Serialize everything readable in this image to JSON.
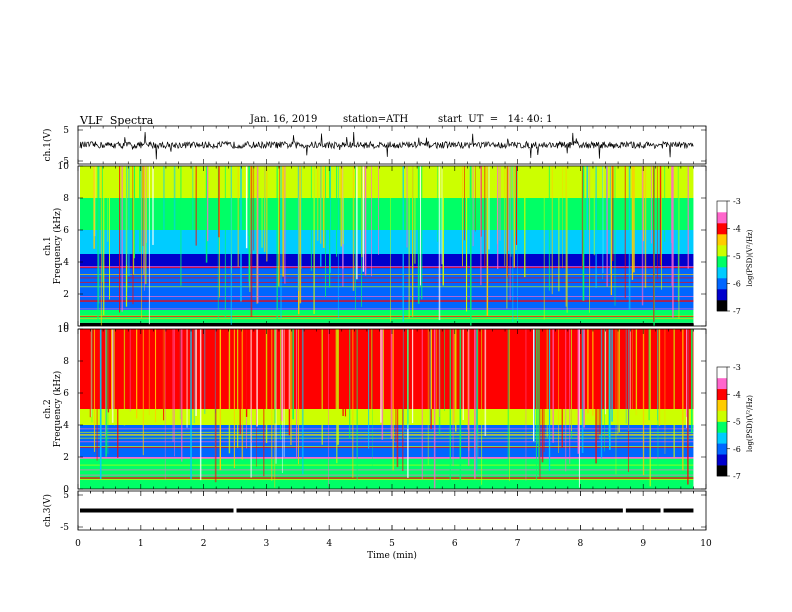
{
  "header": {
    "title": "VLF  Spectra",
    "date": "Jan. 16, 2019",
    "station": "station=ATH",
    "start": "start  UT  =   14: 40: 1"
  },
  "colorbar": {
    "label": "log(PSD)(V²/Hz)",
    "ticks": [
      "-3",
      "-4",
      "-5",
      "-6",
      "-7"
    ],
    "range": [
      -7,
      -3
    ],
    "colors": [
      "#000000",
      "#0000cc",
      "#0066ff",
      "#00ccff",
      "#00ff66",
      "#ccff00",
      "#ffcc00",
      "#ff0000",
      "#ff66cc",
      "#ffffff"
    ]
  },
  "chart_data": [
    {
      "type": "line",
      "ylabel": "ch.1(V)",
      "ylim": [
        -5,
        5
      ],
      "yticks": [
        "5",
        "-5"
      ],
      "xlim": [
        0,
        10
      ],
      "series": [
        {
          "color": "#000000",
          "baseline": 0,
          "spread": 1.5
        }
      ]
    },
    {
      "type": "heatmap",
      "ylabel": "ch.1\nFrequency  (kHz)",
      "ylim": [
        0,
        10
      ],
      "yticks": [
        "0",
        "2",
        "4",
        "6",
        "8",
        "10"
      ],
      "xlim": [
        0,
        9.8
      ],
      "bands": [
        {
          "f0": 0,
          "f1": 0.2,
          "value": -7
        },
        {
          "f0": 0.2,
          "f1": 1.0,
          "value": -5.2
        },
        {
          "f0": 1.0,
          "f1": 3.6,
          "value": -5.9
        },
        {
          "f0": 3.6,
          "f1": 4.5,
          "value": -6.6
        },
        {
          "f0": 4.5,
          "f1": 6.0,
          "value": -5.6
        },
        {
          "f0": 6.0,
          "f1": 8.0,
          "value": -5.2
        },
        {
          "f0": 8.0,
          "f1": 10,
          "value": -4.8
        }
      ]
    },
    {
      "type": "heatmap",
      "ylabel": "ch.2\nFrequency  (kHz)",
      "ylim": [
        0,
        10
      ],
      "yticks": [
        "0",
        "2",
        "4",
        "6",
        "8",
        "10"
      ],
      "xlim": [
        0,
        9.8
      ],
      "bands": [
        {
          "f0": 0,
          "f1": 1.9,
          "value": -5.3
        },
        {
          "f0": 1.9,
          "f1": 2.0,
          "value": -3.8
        },
        {
          "f0": 2.0,
          "f1": 4.0,
          "value": -5.9
        },
        {
          "f0": 4.0,
          "f1": 5.0,
          "value": -4.8
        },
        {
          "f0": 5.0,
          "f1": 10,
          "value": -4.2
        }
      ]
    },
    {
      "type": "line",
      "ylabel": "ch.3(V)",
      "ylim": [
        -5,
        5
      ],
      "yticks": [
        "5",
        "-5"
      ],
      "xlim": [
        0,
        10
      ],
      "series": [
        {
          "color": "#000000",
          "baseline": 0,
          "spread": 0.5
        }
      ],
      "gaps": [
        2.5,
        8.7,
        9.3
      ]
    }
  ],
  "xaxis": {
    "label": "Time  (min)",
    "ticks": [
      "0",
      "1",
      "2",
      "3",
      "4",
      "5",
      "6",
      "7",
      "8",
      "9",
      "10"
    ],
    "range": [
      0,
      10
    ]
  }
}
